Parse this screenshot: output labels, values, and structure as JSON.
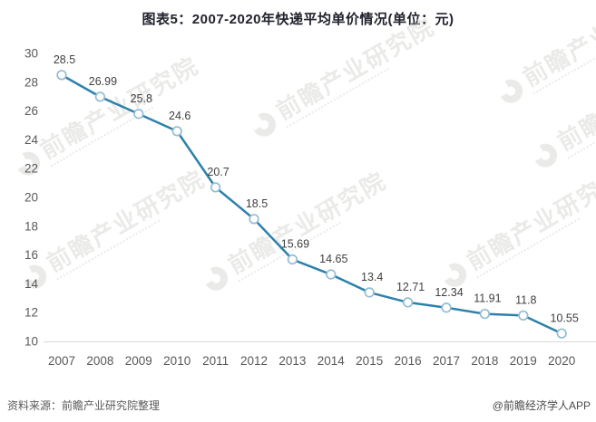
{
  "title": "图表5：2007-2020年快递平均单价情况(单位：元)",
  "watermark": {
    "text": "前瞻产业研究院"
  },
  "footer": {
    "source": "资料来源：前瞻产业研究院整理",
    "credit": "@前瞻经济学人APP"
  },
  "chart_data": {
    "type": "line",
    "title": "图表5：2007-2020年快递平均单价情况(单位：元)",
    "unit": "元",
    "categories": [
      "2007",
      "2008",
      "2009",
      "2010",
      "2011",
      "2012",
      "2013",
      "2014",
      "2015",
      "2016",
      "2017",
      "2018",
      "2019",
      "2020"
    ],
    "values": [
      28.5,
      26.99,
      25.8,
      24.6,
      20.7,
      18.5,
      15.69,
      14.65,
      13.4,
      12.71,
      12.34,
      11.91,
      11.8,
      10.55
    ],
    "data_labels": [
      "28.5",
      "26.99",
      "25.8",
      "24.6",
      "20.7",
      "18.5",
      "15.69",
      "14.65",
      "13.4",
      "12.71",
      "12.34",
      "11.91",
      "11.8",
      "10.55"
    ],
    "xlabel": "",
    "ylabel": "",
    "ylim": [
      10,
      30
    ],
    "yticks": [
      30,
      28,
      26,
      24,
      22,
      20,
      18,
      16,
      14,
      12,
      10
    ],
    "grid": false,
    "legend": "none",
    "line_color": "#2e81ab",
    "marker_fill": "#ffffff",
    "marker_stroke": "#93bdd3",
    "axis_color": "#d9d9d9",
    "label_color": "#404040",
    "tick_color": "#595959"
  }
}
